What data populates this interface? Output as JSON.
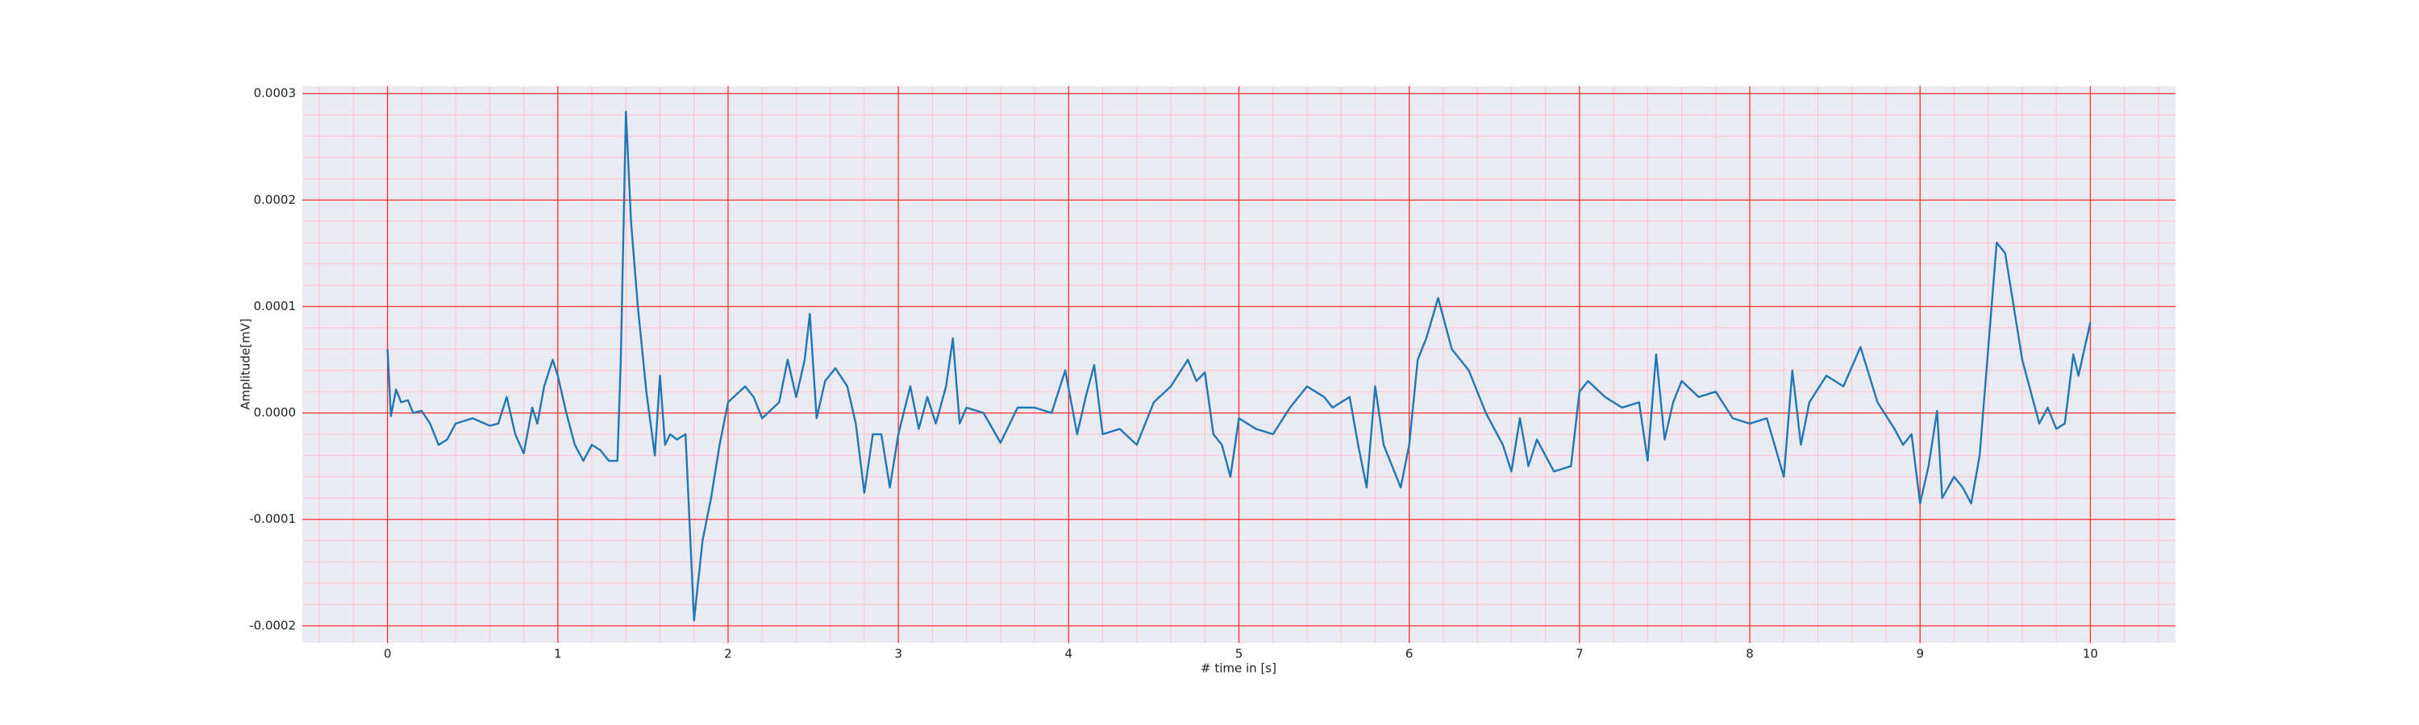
{
  "chart_data": {
    "type": "line",
    "xlabel": "# time in [s]",
    "ylabel": "Amplitude[mV]",
    "x": [
      0.0,
      0.02,
      0.05,
      0.08,
      0.12,
      0.15,
      0.2,
      0.25,
      0.3,
      0.35,
      0.4,
      0.5,
      0.6,
      0.65,
      0.7,
      0.75,
      0.8,
      0.85,
      0.88,
      0.92,
      0.97,
      1.0,
      1.05,
      1.1,
      1.15,
      1.2,
      1.25,
      1.3,
      1.35,
      1.37,
      1.4,
      1.43,
      1.47,
      1.52,
      1.57,
      1.6,
      1.63,
      1.66,
      1.7,
      1.75,
      1.8,
      1.85,
      1.9,
      1.95,
      2.0,
      2.1,
      2.15,
      2.2,
      2.3,
      2.35,
      2.4,
      2.45,
      2.48,
      2.52,
      2.57,
      2.63,
      2.7,
      2.75,
      2.8,
      2.85,
      2.9,
      2.95,
      3.0,
      3.07,
      3.12,
      3.17,
      3.22,
      3.28,
      3.32,
      3.36,
      3.4,
      3.5,
      3.6,
      3.7,
      3.8,
      3.9,
      3.98,
      4.05,
      4.1,
      4.15,
      4.2,
      4.3,
      4.4,
      4.5,
      4.6,
      4.7,
      4.75,
      4.8,
      4.85,
      4.9,
      4.95,
      5.0,
      5.1,
      5.2,
      5.3,
      5.4,
      5.5,
      5.55,
      5.65,
      5.7,
      5.75,
      5.8,
      5.85,
      5.95,
      6.0,
      6.05,
      6.1,
      6.17,
      6.25,
      6.35,
      6.45,
      6.55,
      6.6,
      6.65,
      6.7,
      6.75,
      6.85,
      6.95,
      7.0,
      7.05,
      7.15,
      7.25,
      7.35,
      7.4,
      7.45,
      7.5,
      7.55,
      7.6,
      7.7,
      7.8,
      7.9,
      8.0,
      8.1,
      8.2,
      8.25,
      8.3,
      8.35,
      8.45,
      8.55,
      8.65,
      8.75,
      8.85,
      8.9,
      8.95,
      9.0,
      9.05,
      9.1,
      9.13,
      9.2,
      9.25,
      9.3,
      9.35,
      9.4,
      9.45,
      9.5,
      9.6,
      9.7,
      9.75,
      9.8,
      9.85,
      9.9,
      9.93,
      10.0
    ],
    "values": [
      6e-05,
      -3e-06,
      2.2e-05,
      1e-05,
      1.2e-05,
      0.0,
      2e-06,
      -1e-05,
      -3e-05,
      -2.5e-05,
      -1e-05,
      -5e-06,
      -1.2e-05,
      -1e-05,
      1.5e-05,
      -2e-05,
      -3.8e-05,
      5e-06,
      -1e-05,
      2.5e-05,
      5e-05,
      3.5e-05,
      0.0,
      -3e-05,
      -4.5e-05,
      -3e-05,
      -3.5e-05,
      -4.5e-05,
      -4.5e-05,
      5e-05,
      0.000283,
      0.00018,
      0.0001,
      2e-05,
      -4e-05,
      3.5e-05,
      -3e-05,
      -2e-05,
      -2.5e-05,
      -2e-05,
      -0.000195,
      -0.00012,
      -8e-05,
      -3e-05,
      1e-05,
      2.5e-05,
      1.5e-05,
      -5e-06,
      1e-05,
      5e-05,
      1.5e-05,
      5e-05,
      9.3e-05,
      -5e-06,
      3e-05,
      4.2e-05,
      2.5e-05,
      -1e-05,
      -7.5e-05,
      -2e-05,
      -2e-05,
      -7e-05,
      -2e-05,
      2.5e-05,
      -1.5e-05,
      1.5e-05,
      -1e-05,
      2.5e-05,
      7e-05,
      -1e-05,
      5e-06,
      0.0,
      -2.8e-05,
      5e-06,
      5e-06,
      0.0,
      4e-05,
      -2e-05,
      1.5e-05,
      4.5e-05,
      -2e-05,
      -1.5e-05,
      -3e-05,
      1e-05,
      2.5e-05,
      5e-05,
      3e-05,
      3.8e-05,
      -2e-05,
      -3e-05,
      -6e-05,
      -5e-06,
      -1.5e-05,
      -2e-05,
      5e-06,
      2.5e-05,
      1.5e-05,
      5e-06,
      1.5e-05,
      -3e-05,
      -7e-05,
      2.5e-05,
      -3e-05,
      -7e-05,
      -3e-05,
      5e-05,
      7e-05,
      0.000108,
      6e-05,
      4e-05,
      0.0,
      -3e-05,
      -5.5e-05,
      -5e-06,
      -5e-05,
      -2.5e-05,
      -5.5e-05,
      -5e-05,
      2e-05,
      3e-05,
      1.5e-05,
      5e-06,
      1e-05,
      -4.5e-05,
      5.5e-05,
      -2.5e-05,
      1e-05,
      3e-05,
      1.5e-05,
      2e-05,
      -5e-06,
      -1e-05,
      -5e-06,
      -6e-05,
      4e-05,
      -3e-05,
      1e-05,
      3.5e-05,
      2.5e-05,
      6.2e-05,
      1e-05,
      -1.5e-05,
      -3e-05,
      -2e-05,
      -8.5e-05,
      -5e-05,
      2e-06,
      -8e-05,
      -6e-05,
      -7e-05,
      -8.5e-05,
      -4e-05,
      6e-05,
      0.00016,
      0.00015,
      5e-05,
      -1e-05,
      5e-06,
      -1.5e-05,
      -1e-05,
      5.5e-05,
      3.5e-05,
      8.5e-05
    ],
    "color": "#1f77b4",
    "xlim": [
      -0.5,
      10.5
    ],
    "xticks": [
      0,
      1,
      2,
      3,
      4,
      5,
      6,
      7,
      8,
      9,
      10
    ],
    "ylim": [
      -0.000216,
      0.000307
    ],
    "yticks": [
      {
        "value": -0.0002,
        "label": "-0.0002"
      },
      {
        "value": -0.0001,
        "label": "-0.0001"
      },
      {
        "value": 0,
        "label": "0.0000"
      },
      {
        "value": 0.0001,
        "label": "0.0001"
      },
      {
        "value": 0.0002,
        "label": "0.0002"
      },
      {
        "value": 0.0003,
        "label": "0.0003"
      }
    ],
    "grid": true,
    "grid_color": "#ff3030",
    "minor_grid": true,
    "minor_grid_color": "#ffc0cb",
    "background": "#eaeaf2"
  }
}
